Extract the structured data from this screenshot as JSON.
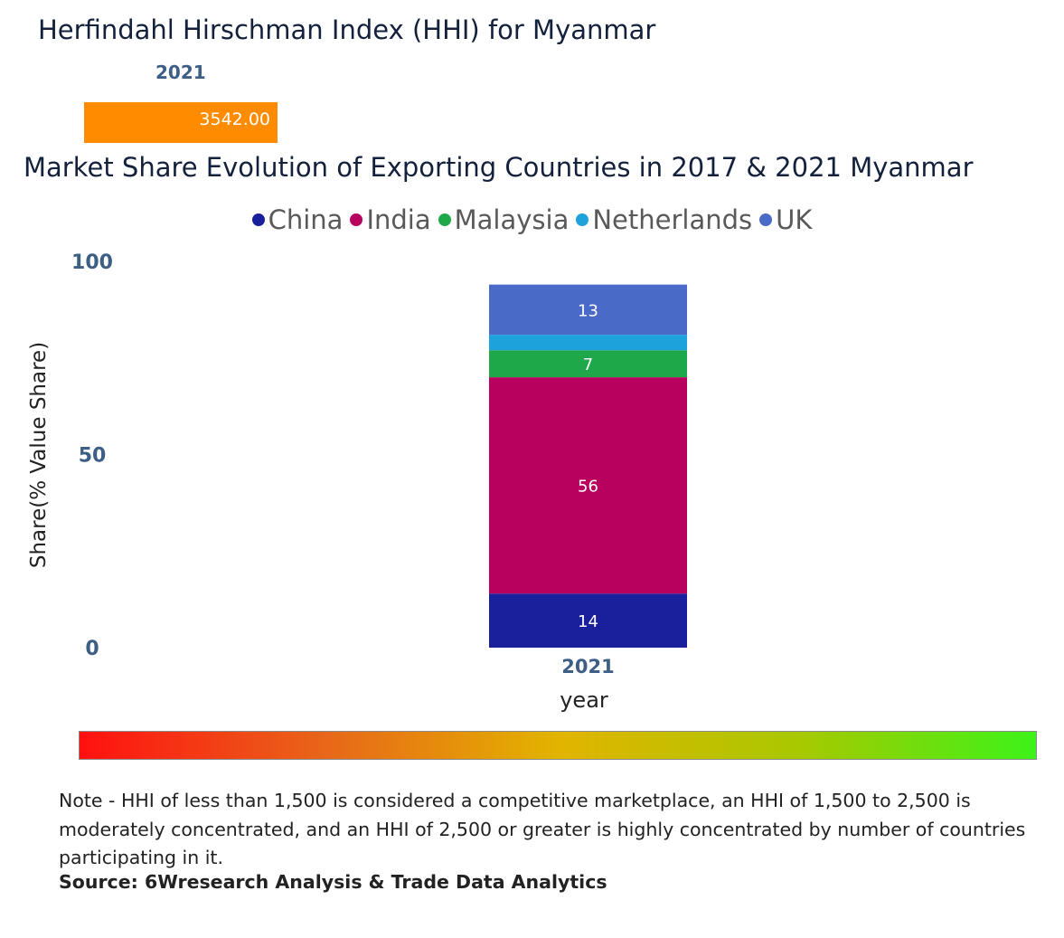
{
  "hhi": {
    "title": "Herfindahl Hirschman Index (HHI) for Myanmar",
    "year": "2021",
    "value": 3542.0,
    "value_label": "3542.00",
    "bar_color": "#ff8c00"
  },
  "chart_data": {
    "type": "bar",
    "stacked": true,
    "title": "Market Share Evolution of Exporting Countries in 2017 & 2021 Myanmar",
    "xlabel": "year",
    "ylabel": "Share(% Value Share)",
    "ylim": [
      0,
      100
    ],
    "yticks": [
      "0",
      "50",
      "100"
    ],
    "categories": [
      "2021"
    ],
    "series": [
      {
        "name": "China",
        "color": "#1a1f9c",
        "values": [
          14
        ],
        "labels": [
          "14"
        ]
      },
      {
        "name": "India",
        "color": "#b8005f",
        "values": [
          56
        ],
        "labels": [
          "56"
        ]
      },
      {
        "name": "Malaysia",
        "color": "#1fa84a",
        "values": [
          7
        ],
        "labels": [
          "7"
        ]
      },
      {
        "name": "Netherlands",
        "color": "#1ea2dc",
        "values": [
          4
        ],
        "labels": [
          ""
        ]
      },
      {
        "name": "UK",
        "color": "#4a6ac8",
        "values": [
          13
        ],
        "labels": [
          "13"
        ]
      }
    ],
    "legend_position": "top"
  },
  "note": "Note - HHI of less than 1,500 is considered a competitive marketplace, an HHI of 1,500 to 2,500 is moderately concentrated, and an HHI of 2,500 or greater is highly concentrated by number of countries participating in it.",
  "source": "Source: 6Wresearch Analysis & Trade Data Analytics"
}
